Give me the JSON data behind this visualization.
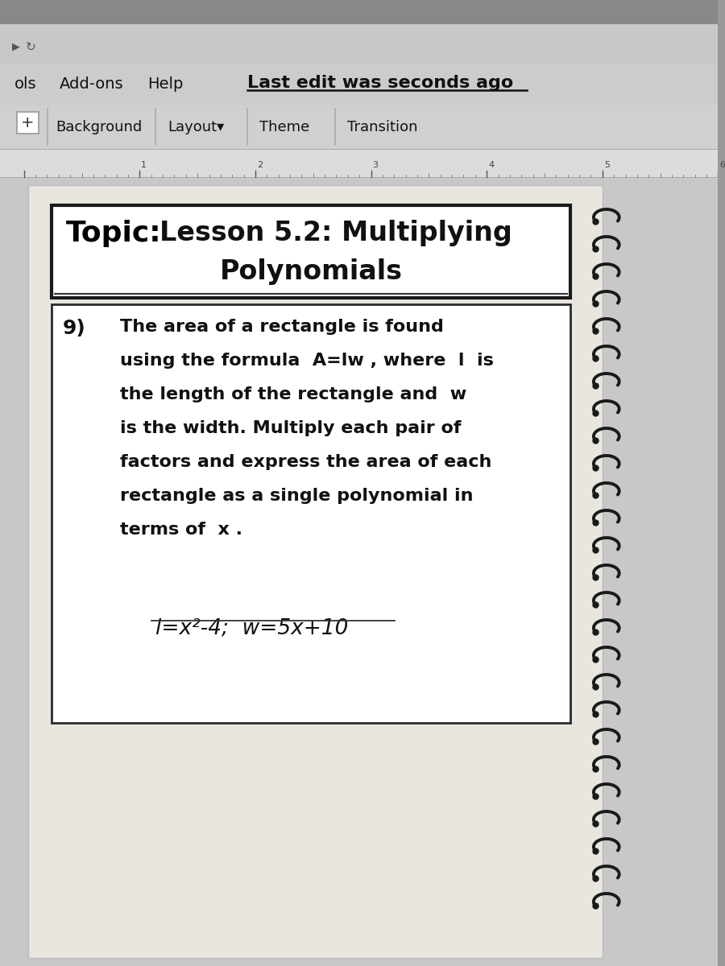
{
  "bg_top_color": "#888888",
  "bg_mid_color": "#b0b0b0",
  "bg_main_color": "#c0c0c0",
  "screen_bg": "#d2d2d2",
  "content_bg": "#e8e6e0",
  "white": "#ffffff",
  "title_border": "#1a1a1a",
  "inner_border": "#2a2a2a",
  "text_color": "#111111",
  "spiral_color": "#1a1a1a",
  "menu_bar_bg": "#cccccc",
  "toolbar_bg": "#d0d0d0",
  "ruler_bg": "#d8d8d8",
  "title_bold": "Topic:",
  "title_rest_line1": " Lesson 5.2: Multiplying",
  "title_line2": "Polynomials",
  "question_num": "9)",
  "q_lines": [
    "The area of a rectangle is found",
    "using the formula  A=lw , where  l  is",
    "the length of the rectangle and  w",
    "is the width. Multiply each pair of",
    "factors and express the area of each",
    "rectangle as a single polynomial in",
    "terms of  x ."
  ],
  "formula": "l=x²-4;  w=5x+10"
}
